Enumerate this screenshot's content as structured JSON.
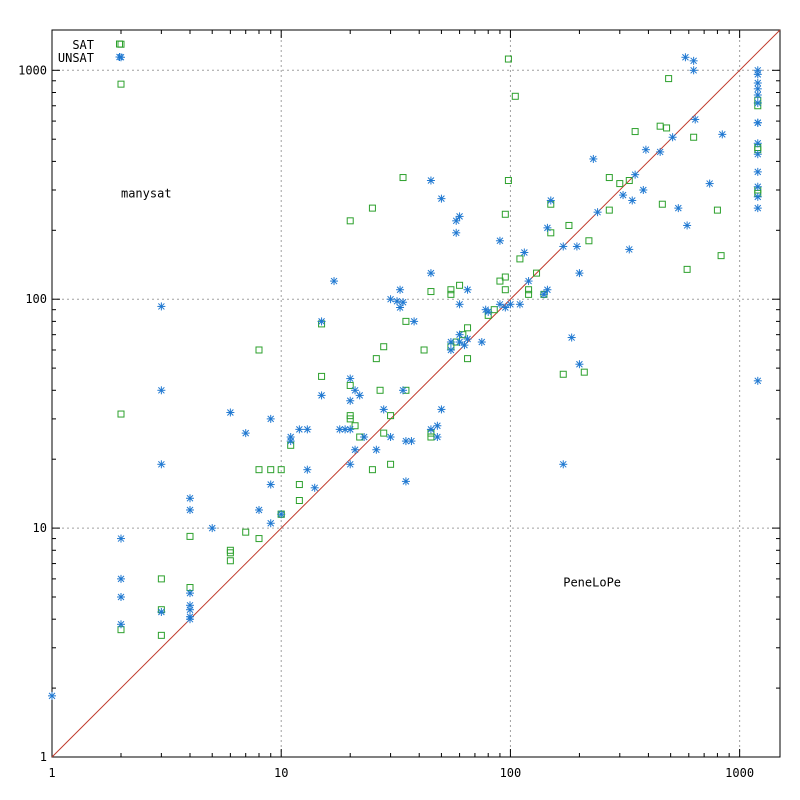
{
  "chart_data": {
    "type": "scatter",
    "x_scale": "log",
    "y_scale": "log",
    "xlim": [
      1,
      1500
    ],
    "ylim": [
      1,
      1500
    ],
    "xticks": [
      1,
      10,
      100,
      1000
    ],
    "yticks": [
      1,
      10,
      100,
      1000
    ],
    "xtick_labels": [
      "1",
      "10",
      "100",
      "1000"
    ],
    "ytick_labels": [
      "1",
      "10",
      "100",
      "1000"
    ],
    "grid": true,
    "legend_position": "top-left",
    "diagonal_line": {
      "from": [
        1,
        1
      ],
      "to": [
        1500,
        1500
      ],
      "color": "#c0392b"
    },
    "annotations": [
      {
        "text": "manysat",
        "x": 2.0,
        "y": 290
      },
      {
        "text": "PeneLoPe",
        "x": 170,
        "y": 5.8
      }
    ],
    "series": [
      {
        "name": "SAT",
        "marker": "square",
        "color": "#2ca02c",
        "points": [
          [
            2,
            1300
          ],
          [
            2,
            870
          ],
          [
            98,
            1120
          ],
          [
            105,
            770
          ],
          [
            490,
            920
          ],
          [
            34,
            340
          ],
          [
            25,
            250
          ],
          [
            20,
            220
          ],
          [
            98,
            330
          ],
          [
            95,
            235
          ],
          [
            270,
            340
          ],
          [
            300,
            320
          ],
          [
            330,
            330
          ],
          [
            350,
            540
          ],
          [
            450,
            570
          ],
          [
            480,
            560
          ],
          [
            460,
            260
          ],
          [
            630,
            510
          ],
          [
            800,
            245
          ],
          [
            830,
            155
          ],
          [
            590,
            135
          ],
          [
            270,
            245
          ],
          [
            220,
            180
          ],
          [
            180,
            210
          ],
          [
            150,
            260
          ],
          [
            150,
            195
          ],
          [
            130,
            130
          ],
          [
            120,
            110
          ],
          [
            110,
            150
          ],
          [
            120,
            105
          ],
          [
            140,
            105
          ],
          [
            95,
            110
          ],
          [
            90,
            120
          ],
          [
            80,
            85
          ],
          [
            85,
            90
          ],
          [
            95,
            125
          ],
          [
            55,
            105
          ],
          [
            60,
            115
          ],
          [
            65,
            75
          ],
          [
            65,
            55
          ],
          [
            62,
            70
          ],
          [
            58,
            65
          ],
          [
            55,
            62
          ],
          [
            55,
            110
          ],
          [
            45,
            108
          ],
          [
            42,
            60
          ],
          [
            35,
            80
          ],
          [
            28,
            62
          ],
          [
            26,
            55
          ],
          [
            15,
            46
          ],
          [
            15,
            78
          ],
          [
            8,
            60
          ],
          [
            27,
            40
          ],
          [
            35,
            40
          ],
          [
            20,
            42
          ],
          [
            20,
            30
          ],
          [
            21,
            28
          ],
          [
            22,
            25
          ],
          [
            30,
            31
          ],
          [
            25,
            18
          ],
          [
            28,
            26
          ],
          [
            30,
            19
          ],
          [
            45,
            25
          ],
          [
            45,
            26
          ],
          [
            20,
            31
          ],
          [
            10,
            18
          ],
          [
            10,
            11.5
          ],
          [
            12,
            15.5
          ],
          [
            12,
            13.2
          ],
          [
            10,
            11.5
          ],
          [
            11,
            23
          ],
          [
            9,
            18
          ],
          [
            8,
            18
          ],
          [
            7,
            9.6
          ],
          [
            8,
            9
          ],
          [
            6,
            8
          ],
          [
            6,
            7.8
          ],
          [
            6,
            7.2
          ],
          [
            4,
            9.2
          ],
          [
            4,
            5.5
          ],
          [
            3,
            6
          ],
          [
            3,
            4.4
          ],
          [
            3,
            3.4
          ],
          [
            2,
            31.5
          ],
          [
            2,
            3.6
          ],
          [
            170,
            47
          ],
          [
            210,
            48
          ],
          [
            1200,
            700
          ],
          [
            1200,
            460
          ],
          [
            1200,
            450
          ],
          [
            1200,
            300
          ],
          [
            1200,
            290
          ],
          [
            1200,
            740
          ]
        ]
      },
      {
        "name": "UNSAT",
        "marker": "asterisk",
        "color": "#1f78d1",
        "points": [
          [
            2,
            1140
          ],
          [
            580,
            1140
          ],
          [
            630,
            1100
          ],
          [
            630,
            1000
          ],
          [
            640,
            610
          ],
          [
            1200,
            1000
          ],
          [
            1200,
            960
          ],
          [
            1200,
            880
          ],
          [
            1200,
            830
          ],
          [
            1200,
            780
          ],
          [
            1200,
            720
          ],
          [
            1200,
            590
          ],
          [
            1200,
            590
          ],
          [
            1200,
            480
          ],
          [
            1200,
            430
          ],
          [
            1200,
            360
          ],
          [
            1200,
            310
          ],
          [
            1200,
            280
          ],
          [
            1200,
            250
          ],
          [
            1200,
            44
          ],
          [
            840,
            525
          ],
          [
            740,
            320
          ],
          [
            590,
            210
          ],
          [
            540,
            250
          ],
          [
            510,
            510
          ],
          [
            450,
            440
          ],
          [
            390,
            450
          ],
          [
            380,
            300
          ],
          [
            350,
            350
          ],
          [
            340,
            270
          ],
          [
            330,
            165
          ],
          [
            310,
            285
          ],
          [
            230,
            410
          ],
          [
            240,
            240
          ],
          [
            200,
            130
          ],
          [
            195,
            170
          ],
          [
            170,
            170
          ],
          [
            185,
            68
          ],
          [
            200,
            52
          ],
          [
            170,
            19
          ],
          [
            150,
            270
          ],
          [
            145,
            205
          ],
          [
            145,
            110
          ],
          [
            140,
            105
          ],
          [
            110,
            95
          ],
          [
            120,
            120
          ],
          [
            115,
            160
          ],
          [
            90,
            180
          ],
          [
            100,
            95
          ],
          [
            75,
            65
          ],
          [
            78,
            90
          ],
          [
            80,
            88
          ],
          [
            90,
            95
          ],
          [
            95,
            92
          ],
          [
            45,
            330
          ],
          [
            50,
            275
          ],
          [
            58,
            195
          ],
          [
            58,
            220
          ],
          [
            60,
            230
          ],
          [
            45,
            130
          ],
          [
            60,
            95
          ],
          [
            60,
            70
          ],
          [
            60,
            65
          ],
          [
            63,
            63
          ],
          [
            65,
            67
          ],
          [
            65,
            110
          ],
          [
            55,
            65
          ],
          [
            55,
            60
          ],
          [
            17,
            120
          ],
          [
            30,
            100
          ],
          [
            33,
            110
          ],
          [
            32,
            98
          ],
          [
            34,
            97
          ],
          [
            33,
            92
          ],
          [
            37,
            24
          ],
          [
            34,
            40
          ],
          [
            38,
            80
          ],
          [
            48,
            28
          ],
          [
            50,
            33
          ],
          [
            45,
            27
          ],
          [
            48,
            25
          ],
          [
            20,
            45
          ],
          [
            20,
            36
          ],
          [
            21,
            40
          ],
          [
            22,
            38
          ],
          [
            18,
            27
          ],
          [
            19,
            27
          ],
          [
            20,
            27
          ],
          [
            21,
            22
          ],
          [
            23,
            25
          ],
          [
            26,
            22
          ],
          [
            28,
            33
          ],
          [
            30,
            25
          ],
          [
            35,
            24
          ],
          [
            15,
            38
          ],
          [
            15,
            80
          ],
          [
            14,
            15
          ],
          [
            13,
            18
          ],
          [
            13,
            27
          ],
          [
            12,
            27
          ],
          [
            11,
            25
          ],
          [
            11,
            24
          ],
          [
            10,
            11.5
          ],
          [
            9,
            10.5
          ],
          [
            9,
            30
          ],
          [
            9,
            15.5
          ],
          [
            8,
            12
          ],
          [
            7,
            26
          ],
          [
            6,
            32
          ],
          [
            5,
            10
          ],
          [
            4,
            13.5
          ],
          [
            4,
            12
          ],
          [
            4,
            5.2
          ],
          [
            4,
            4.6
          ],
          [
            4,
            4.4
          ],
          [
            4,
            4.1
          ],
          [
            4,
            4.0
          ],
          [
            3,
            93
          ],
          [
            3,
            40
          ],
          [
            3,
            19
          ],
          [
            3,
            4.3
          ],
          [
            2,
            9
          ],
          [
            2,
            6
          ],
          [
            2,
            5
          ],
          [
            2,
            3.8
          ],
          [
            1,
            1.85
          ],
          [
            20,
            19
          ],
          [
            35,
            16
          ]
        ]
      }
    ]
  }
}
